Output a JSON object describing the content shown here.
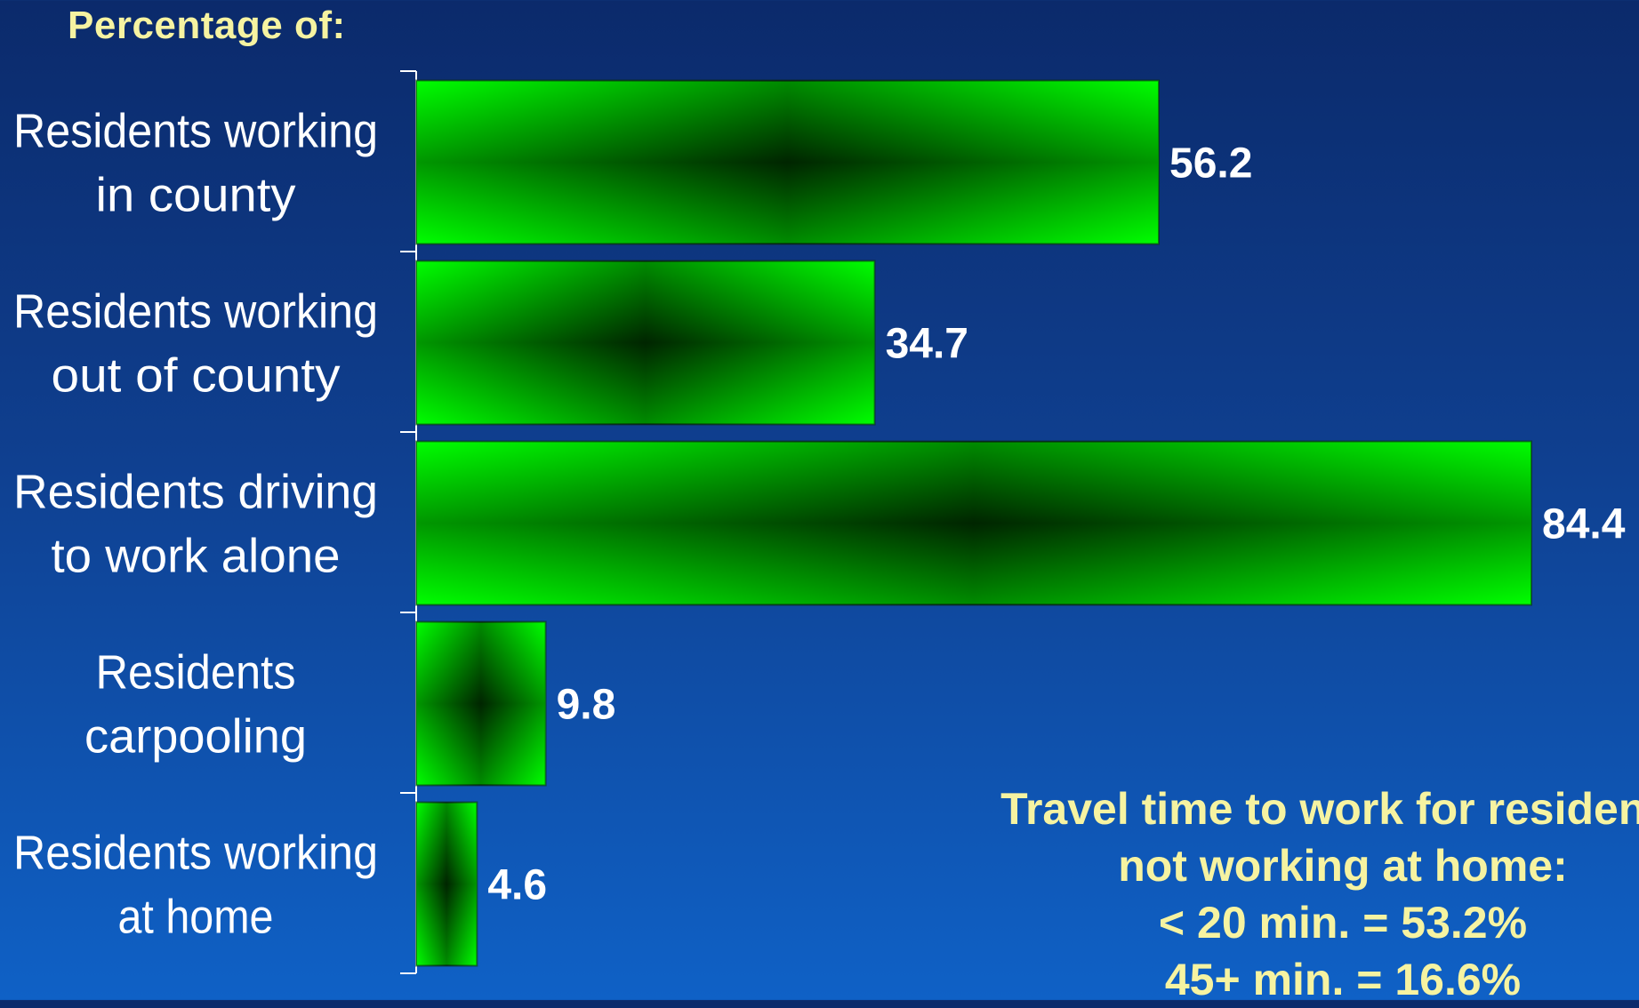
{
  "chart_data": {
    "type": "bar",
    "orientation": "horizontal",
    "title": "Percentage of:",
    "categories": [
      [
        "Residents working",
        "in county"
      ],
      [
        "Residents working",
        "out of county"
      ],
      [
        "Residents driving",
        "to work alone"
      ],
      [
        "Residents",
        "carpooling"
      ],
      [
        "Residents working",
        "at home"
      ]
    ],
    "values": [
      56.2,
      34.7,
      84.4,
      9.8,
      4.6
    ],
    "value_labels": [
      "56.2",
      "34.7",
      "84.4",
      "9.8",
      "4.6"
    ],
    "xlim": [
      0,
      84.4
    ],
    "grid": false,
    "legend": "none",
    "bar_color": "#00ff00",
    "bar_center_color": "#000000",
    "annotation": [
      "Travel time to work for residents",
      "not working at home:",
      "< 20 min. = 53.2%",
      "45+ min. = 16.6%"
    ]
  }
}
